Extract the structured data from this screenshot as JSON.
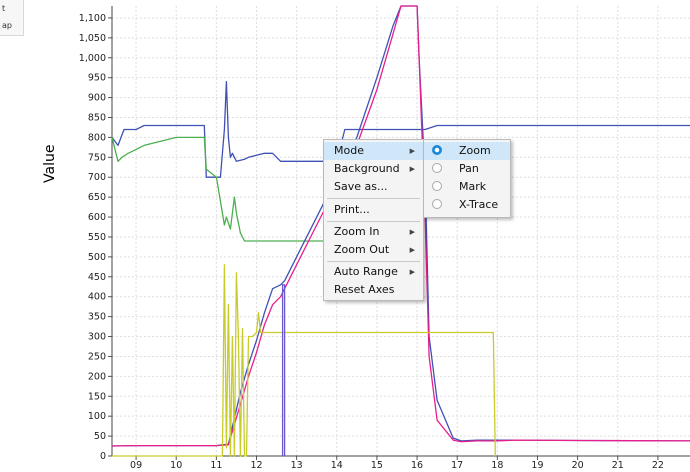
{
  "legend": {
    "items": [
      "t",
      "ap"
    ]
  },
  "chart_data": {
    "type": "line",
    "title": "",
    "xlabel": "",
    "ylabel": "Value",
    "xlim": [
      8.4,
      22.8
    ],
    "ylim": [
      0,
      1130
    ],
    "xticks": [
      "09",
      "10",
      "11",
      "12",
      "13",
      "14",
      "15",
      "16",
      "17",
      "18",
      "19",
      "20",
      "21",
      "22"
    ],
    "yticks": [
      "0",
      "50",
      "100",
      "150",
      "200",
      "250",
      "300",
      "350",
      "400",
      "450",
      "500",
      "550",
      "600",
      "650",
      "700",
      "750",
      "800",
      "850",
      "900",
      "950",
      "1,000",
      "1,050",
      "1,100"
    ],
    "grid": true,
    "colors": [
      "#3f51b5",
      "#4caf50",
      "#e91e8c",
      "#c8cc2a"
    ],
    "series": [
      {
        "color": "#3f51b5",
        "x": [
          8.4,
          8.55,
          8.7,
          8.8,
          9.0,
          9.2,
          10.7,
          10.75,
          11.1,
          11.2,
          11.25,
          11.3,
          11.35,
          11.4,
          11.5,
          11.7,
          11.8,
          12.0,
          12.2,
          12.4,
          12.6,
          12.7,
          13.0,
          13.5,
          14.0,
          14.2,
          15.0,
          15.2,
          15.5,
          16.0,
          16.1,
          16.2,
          16.5,
          17.0,
          17.9,
          18.5,
          20.0,
          22.8
        ],
        "y": [
          800,
          780,
          820,
          820,
          820,
          830,
          830,
          700,
          700,
          820,
          940,
          800,
          750,
          760,
          740,
          745,
          750,
          755,
          760,
          760,
          740,
          740,
          740,
          740,
          740,
          820,
          820,
          820,
          820,
          820,
          820,
          820,
          830,
          830,
          830,
          830,
          830,
          830
        ]
      },
      {
        "color": "#4caf50",
        "x": [
          8.4,
          8.55,
          8.65,
          8.8,
          9.0,
          9.2,
          10.0,
          10.7,
          10.75,
          11.0,
          11.1,
          11.2,
          11.25,
          11.35,
          11.45,
          11.5,
          11.6,
          11.7,
          12.0,
          13.0,
          13.7,
          14.0
        ],
        "y": [
          800,
          740,
          750,
          760,
          770,
          780,
          800,
          800,
          720,
          700,
          640,
          580,
          600,
          570,
          650,
          610,
          560,
          540,
          540,
          540,
          540,
          540
        ]
      },
      {
        "color": "#3f51b5",
        "x": [
          8.4,
          9.0,
          10.0,
          11.0,
          11.3,
          11.6,
          11.8,
          12.0,
          12.2,
          12.4,
          12.6,
          12.7,
          13.0,
          13.5,
          14.0,
          14.5,
          15.0,
          15.4,
          15.6,
          16.0,
          16.05,
          16.2,
          16.3,
          16.5,
          16.9,
          17.1,
          17.5,
          18.0,
          18.5,
          20.0,
          22.8
        ],
        "y": [
          25,
          26,
          26,
          26,
          30,
          160,
          230,
          290,
          360,
          420,
          430,
          440,
          500,
          600,
          700,
          800,
          950,
          1080,
          1130,
          1130,
          1000,
          700,
          300,
          140,
          45,
          38,
          40,
          40,
          40,
          39,
          38
        ]
      },
      {
        "color": "#e91e8c",
        "x": [
          8.4,
          9.0,
          10.0,
          11.0,
          11.3,
          11.6,
          11.8,
          12.0,
          12.2,
          12.4,
          12.6,
          12.7,
          13.0,
          13.5,
          14.0,
          14.5,
          15.0,
          15.4,
          15.6,
          16.0,
          16.05,
          16.2,
          16.3,
          16.5,
          16.9,
          17.1,
          17.5,
          18.0,
          18.5,
          20.0,
          22.8
        ],
        "y": [
          25,
          26,
          26,
          26,
          28,
          130,
          200,
          260,
          330,
          380,
          400,
          420,
          480,
          580,
          680,
          780,
          920,
          1060,
          1130,
          1130,
          1000,
          600,
          250,
          90,
          40,
          36,
          38,
          38,
          40,
          39,
          38
        ]
      },
      {
        "color": "#c8cc2a",
        "x": [
          8.4,
          11.15,
          11.2,
          11.25,
          11.3,
          11.35,
          11.4,
          11.45,
          11.5,
          11.55,
          11.6,
          11.65,
          11.7,
          11.75,
          11.8,
          11.9,
          12.0,
          12.05,
          12.1,
          12.15,
          12.6,
          14.0,
          16.0,
          17.9,
          17.95
        ],
        "y": [
          0,
          0,
          480,
          20,
          380,
          0,
          300,
          0,
          460,
          300,
          0,
          320,
          0,
          0,
          300,
          300,
          310,
          360,
          310,
          310,
          310,
          310,
          310,
          310,
          0
        ]
      },
      {
        "color": "#6a5acd",
        "x": [
          12.65,
          12.65,
          12.7,
          12.7
        ],
        "y": [
          0,
          430,
          430,
          0
        ]
      }
    ]
  },
  "context_menu": {
    "items": [
      {
        "label": "Mode",
        "has_submenu": true,
        "highlighted": true
      },
      {
        "label": "Background",
        "has_submenu": true
      },
      {
        "label": "Save as..."
      },
      {
        "separator": true
      },
      {
        "label": "Print..."
      },
      {
        "separator": true
      },
      {
        "label": "Zoom In",
        "has_submenu": true
      },
      {
        "label": "Zoom Out",
        "has_submenu": true
      },
      {
        "separator": true
      },
      {
        "label": "Auto Range",
        "has_submenu": true
      },
      {
        "label": "Reset Axes"
      }
    ]
  },
  "mode_submenu": {
    "items": [
      {
        "label": "Zoom",
        "selected": true,
        "highlighted": true
      },
      {
        "label": "Pan"
      },
      {
        "label": "Mark"
      },
      {
        "label": "X-Trace"
      }
    ]
  }
}
